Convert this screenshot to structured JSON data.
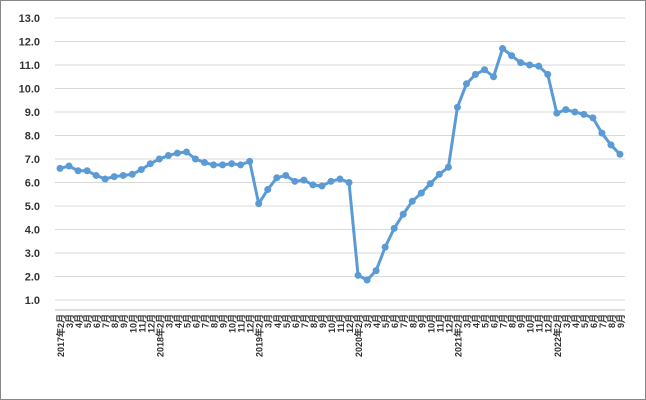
{
  "chart_data": {
    "type": "line",
    "categories": [
      "2017年2月",
      "3月",
      "4月",
      "5月",
      "6月",
      "7月",
      "8月",
      "9月",
      "10月",
      "11月",
      "12月",
      "2018年2月",
      "3月",
      "4月",
      "5月",
      "6月",
      "7月",
      "8月",
      "9月",
      "10月",
      "11月",
      "12月",
      "2019年2月",
      "3月",
      "4月",
      "5月",
      "6月",
      "7月",
      "8月",
      "9月",
      "10月",
      "11月",
      "12月",
      "2020年2月",
      "3月",
      "4月",
      "5月",
      "6月",
      "7月",
      "8月",
      "9月",
      "10月",
      "11月",
      "12月",
      "2021年2月",
      "3月",
      "4月",
      "5月",
      "6月",
      "7月",
      "8月",
      "9月",
      "10月",
      "11月",
      "12月",
      "2022年2月",
      "3月",
      "4月",
      "5月",
      "6月",
      "7月",
      "8月",
      "9月"
    ],
    "series": [
      {
        "color": "#5b9bd5",
        "values": [
          6.6,
          6.7,
          6.5,
          6.5,
          6.3,
          6.15,
          6.25,
          6.3,
          6.35,
          6.55,
          6.8,
          7.0,
          7.15,
          7.25,
          7.3,
          7.0,
          6.85,
          6.75,
          6.75,
          6.8,
          6.75,
          6.9,
          5.1,
          5.7,
          6.2,
          6.3,
          6.05,
          6.1,
          5.9,
          5.85,
          6.05,
          6.15,
          6.0,
          2.05,
          1.85,
          2.25,
          3.25,
          4.05,
          4.65,
          5.2,
          5.55,
          5.95,
          6.35,
          6.65,
          9.2,
          10.2,
          10.6,
          10.8,
          10.5,
          11.7,
          11.4,
          11.1,
          11.0,
          10.95,
          10.6,
          8.95,
          9.1,
          9.0,
          8.9,
          8.75,
          8.1,
          7.6,
          7.2
        ]
      }
    ],
    "ylim": [
      1,
      13
    ],
    "yticks": [
      {
        "value": 1,
        "label": "1.0"
      },
      {
        "value": 2,
        "label": "2.0"
      },
      {
        "value": 3,
        "label": "3.0"
      },
      {
        "value": 4,
        "label": "4.0"
      },
      {
        "value": 5,
        "label": "5.0"
      },
      {
        "value": 6,
        "label": "6.0"
      },
      {
        "value": 7,
        "label": "7.0"
      },
      {
        "value": 8,
        "label": "8.0"
      },
      {
        "value": 9,
        "label": "9.0"
      },
      {
        "value": 10,
        "label": "10.0"
      },
      {
        "value": 11,
        "label": "11.0"
      },
      {
        "value": 12,
        "label": "12.0"
      },
      {
        "value": 13,
        "label": "13.0"
      }
    ],
    "grid": true
  }
}
